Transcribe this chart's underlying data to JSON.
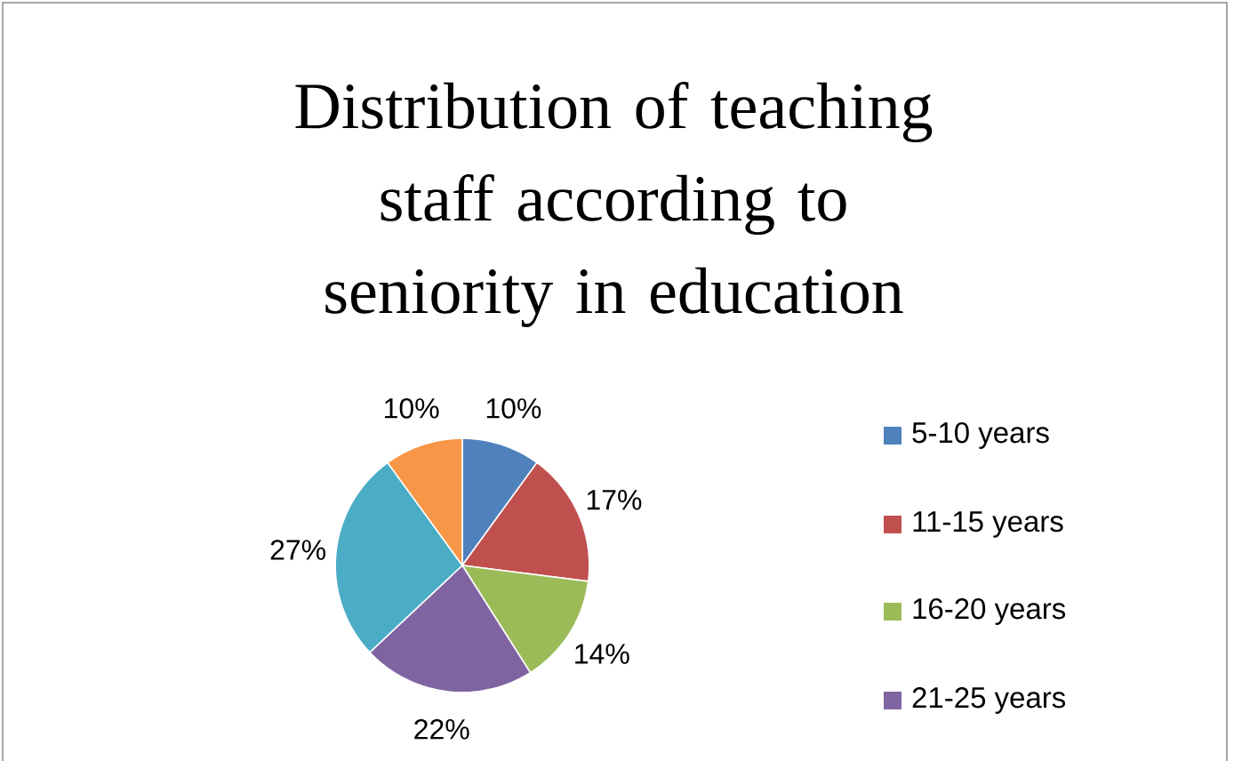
{
  "chart_data": {
    "type": "pie",
    "title": "Distribution of teaching staff according to seniority in education",
    "categories": [
      "5-10 years",
      "11-15 years",
      "16-20 years",
      "21-25 years",
      null,
      null
    ],
    "values": [
      10,
      17,
      14,
      22,
      27,
      10
    ],
    "value_labels": [
      "10%",
      "17%",
      "14%",
      "22%",
      "27%",
      "10%"
    ],
    "colors": [
      "#4f81bd",
      "#c0504d",
      "#9bbb59",
      "#8064a2",
      "#4bacc6",
      "#f79646"
    ],
    "legend": "right"
  }
}
